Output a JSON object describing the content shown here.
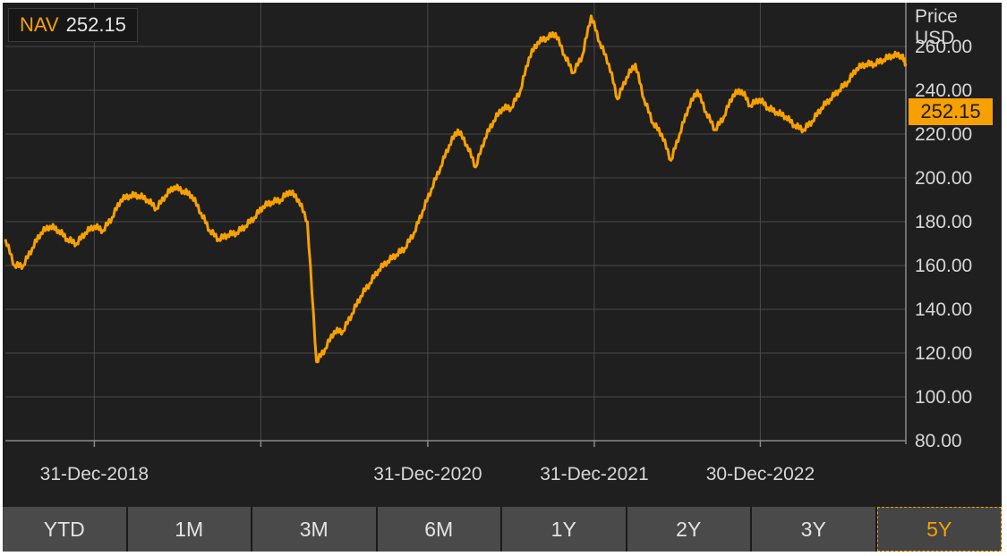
{
  "legend": {
    "label": "NAV",
    "value": "252.15"
  },
  "unit": {
    "line1": "Price",
    "line2": "USD"
  },
  "last_value_badge": "252.15",
  "ranges": [
    "YTD",
    "1M",
    "3M",
    "6M",
    "1Y",
    "2Y",
    "3Y",
    "5Y"
  ],
  "active_range": "5Y",
  "colors": {
    "line": "#f7a100",
    "background": "#1f1f1f",
    "grid": "#4a4a4a",
    "button": "#4a4a4a"
  },
  "chart_data": {
    "type": "line",
    "title": "",
    "xlabel": "",
    "ylabel": "Price USD",
    "ylim": [
      80,
      280
    ],
    "xlim": [
      "2018-06-19",
      "2023-11-14"
    ],
    "yticks": [
      80,
      100,
      120,
      140,
      160,
      180,
      200,
      220,
      240,
      260
    ],
    "ytick_labels": [
      "80.00",
      "100.00",
      "120.00",
      "140.00",
      "160.00",
      "180.00",
      "200.00",
      "220.00",
      "240.00",
      "260.00"
    ],
    "xtick_dates": [
      "2018-12-31",
      "2019-12-31",
      "2020-12-31",
      "2021-12-31",
      "2022-12-30"
    ],
    "xtick_labels": [
      "31-Dec-2018",
      "",
      "31-Dec-2020",
      "31-Dec-2021",
      "30-Dec-2022"
    ],
    "grid": true,
    "series": [
      {
        "name": "NAV",
        "points": [
          [
            "2018-06-19",
            172
          ],
          [
            "2018-07-09",
            160
          ],
          [
            "2018-07-28",
            160
          ],
          [
            "2018-08-17",
            168
          ],
          [
            "2018-09-05",
            175
          ],
          [
            "2018-09-25",
            178
          ],
          [
            "2018-10-14",
            176
          ],
          [
            "2018-11-02",
            172
          ],
          [
            "2018-11-22",
            170
          ],
          [
            "2018-12-11",
            175
          ],
          [
            "2018-12-31",
            178
          ],
          [
            "2019-01-19",
            176
          ],
          [
            "2019-02-08",
            182
          ],
          [
            "2019-02-27",
            190
          ],
          [
            "2019-03-19",
            192
          ],
          [
            "2019-04-07",
            192
          ],
          [
            "2019-04-27",
            190
          ],
          [
            "2019-05-16",
            186
          ],
          [
            "2019-06-05",
            192
          ],
          [
            "2019-06-24",
            196
          ],
          [
            "2019-07-14",
            194
          ],
          [
            "2019-08-02",
            192
          ],
          [
            "2019-08-22",
            184
          ],
          [
            "2019-09-10",
            176
          ],
          [
            "2019-09-30",
            172
          ],
          [
            "2019-10-19",
            174
          ],
          [
            "2019-11-08",
            175
          ],
          [
            "2019-11-27",
            178
          ],
          [
            "2019-12-17",
            182
          ],
          [
            "2020-01-05",
            187
          ],
          [
            "2020-01-24",
            189
          ],
          [
            "2020-02-13",
            190
          ],
          [
            "2020-03-03",
            194
          ],
          [
            "2020-03-23",
            190
          ],
          [
            "2020-04-11",
            180
          ],
          [
            "2020-05-01",
            116
          ],
          [
            "2020-05-20",
            122
          ],
          [
            "2020-06-09",
            130
          ],
          [
            "2020-06-28",
            130
          ],
          [
            "2020-07-18",
            138
          ],
          [
            "2020-08-06",
            146
          ],
          [
            "2020-08-26",
            152
          ],
          [
            "2020-09-14",
            158
          ],
          [
            "2020-10-04",
            162
          ],
          [
            "2020-10-23",
            165
          ],
          [
            "2020-11-11",
            168
          ],
          [
            "2020-12-01",
            175
          ],
          [
            "2020-12-20",
            185
          ],
          [
            "2021-01-08",
            195
          ],
          [
            "2021-01-28",
            205
          ],
          [
            "2021-02-16",
            215
          ],
          [
            "2021-03-07",
            222
          ],
          [
            "2021-03-27",
            215
          ],
          [
            "2021-04-15",
            205
          ],
          [
            "2021-05-05",
            218
          ],
          [
            "2021-05-24",
            226
          ],
          [
            "2021-06-13",
            232
          ],
          [
            "2021-07-02",
            232
          ],
          [
            "2021-07-22",
            240
          ],
          [
            "2021-08-10",
            255
          ],
          [
            "2021-08-29",
            262
          ],
          [
            "2021-09-18",
            264
          ],
          [
            "2021-10-07",
            266
          ],
          [
            "2021-10-27",
            256
          ],
          [
            "2021-11-15",
            248
          ],
          [
            "2021-12-05",
            256
          ],
          [
            "2021-12-24",
            274
          ],
          [
            "2022-01-12",
            262
          ],
          [
            "2022-02-01",
            252
          ],
          [
            "2022-02-20",
            236
          ],
          [
            "2022-03-12",
            246
          ],
          [
            "2022-03-31",
            252
          ],
          [
            "2022-04-19",
            236
          ],
          [
            "2022-05-09",
            225
          ],
          [
            "2022-05-28",
            220
          ],
          [
            "2022-06-17",
            208
          ],
          [
            "2022-07-06",
            220
          ],
          [
            "2022-07-25",
            232
          ],
          [
            "2022-08-14",
            240
          ],
          [
            "2022-09-02",
            230
          ],
          [
            "2022-09-22",
            222
          ],
          [
            "2022-10-11",
            228
          ],
          [
            "2022-10-31",
            238
          ],
          [
            "2022-11-19",
            240
          ],
          [
            "2022-12-08",
            233
          ],
          [
            "2022-12-28",
            236
          ],
          [
            "2023-01-16",
            232
          ],
          [
            "2023-02-04",
            230
          ],
          [
            "2023-02-24",
            228
          ],
          [
            "2023-03-15",
            224
          ],
          [
            "2023-04-04",
            222
          ],
          [
            "2023-04-23",
            226
          ],
          [
            "2023-05-13",
            232
          ],
          [
            "2023-06-01",
            236
          ],
          [
            "2023-06-20",
            240
          ],
          [
            "2023-07-10",
            244
          ],
          [
            "2023-07-29",
            250
          ],
          [
            "2023-08-18",
            252
          ],
          [
            "2023-09-06",
            252
          ],
          [
            "2023-09-26",
            254
          ],
          [
            "2023-10-15",
            256
          ],
          [
            "2023-11-04",
            256
          ],
          [
            "2023-11-14",
            252.15
          ]
        ]
      }
    ]
  }
}
